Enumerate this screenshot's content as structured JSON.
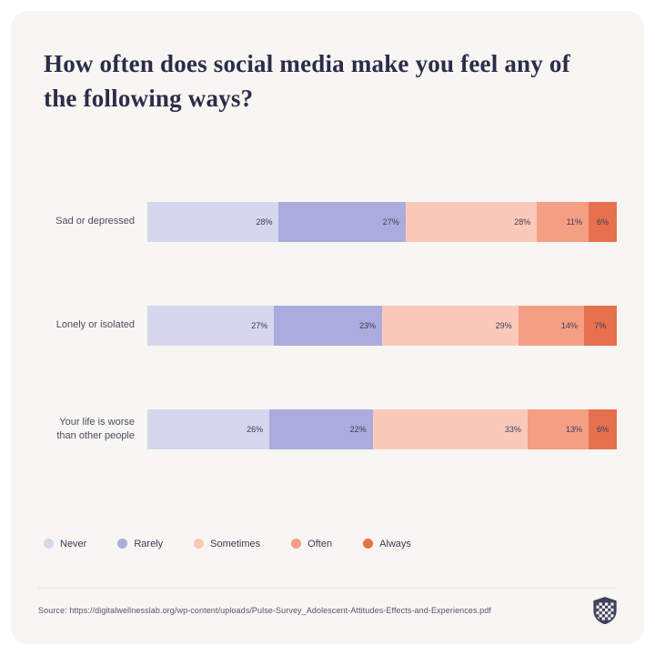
{
  "title": "How often does social media make you feel any of the following ways?",
  "chart_data": {
    "type": "bar",
    "stacked": true,
    "orientation": "horizontal",
    "title": "How often does social media make you feel any of the following ways?",
    "categories": [
      "Sad or depressed",
      "Lonely or isolated",
      "Your life is worse than other people"
    ],
    "series": [
      {
        "name": "Never",
        "color": "#d6d6ee",
        "values": [
          28,
          27,
          26
        ]
      },
      {
        "name": "Rarely",
        "color": "#abacdd",
        "values": [
          27,
          23,
          22
        ]
      },
      {
        "name": "Sometimes",
        "color": "#fbc9ba",
        "values": [
          28,
          29,
          33
        ]
      },
      {
        "name": "Often",
        "color": "#f49e83",
        "values": [
          11,
          14,
          13
        ]
      },
      {
        "name": "Always",
        "color": "#e7704d",
        "values": [
          6,
          7,
          6
        ]
      }
    ],
    "value_suffix": "%",
    "xlim": [
      0,
      100
    ],
    "grid": false,
    "legend_position": "bottom"
  },
  "footer": {
    "source": "Source: https://digitalwellnesslab.org/wp-content/uploads/Pulse-Survey_Adolescent-Attitudes-Effects-and-Experiences.pdf",
    "logo_icon": "shield-checkered-icon"
  },
  "colors": {
    "card_background": "#f7f6f3",
    "title_text": "#2c2c4a",
    "category_label": "#4c4c63",
    "value_label": "#3c3c5a",
    "legend_label": "#3a3a55",
    "divider": "#e8e4dd",
    "source_text": "#55556a",
    "logo": "#3f3f5e"
  }
}
